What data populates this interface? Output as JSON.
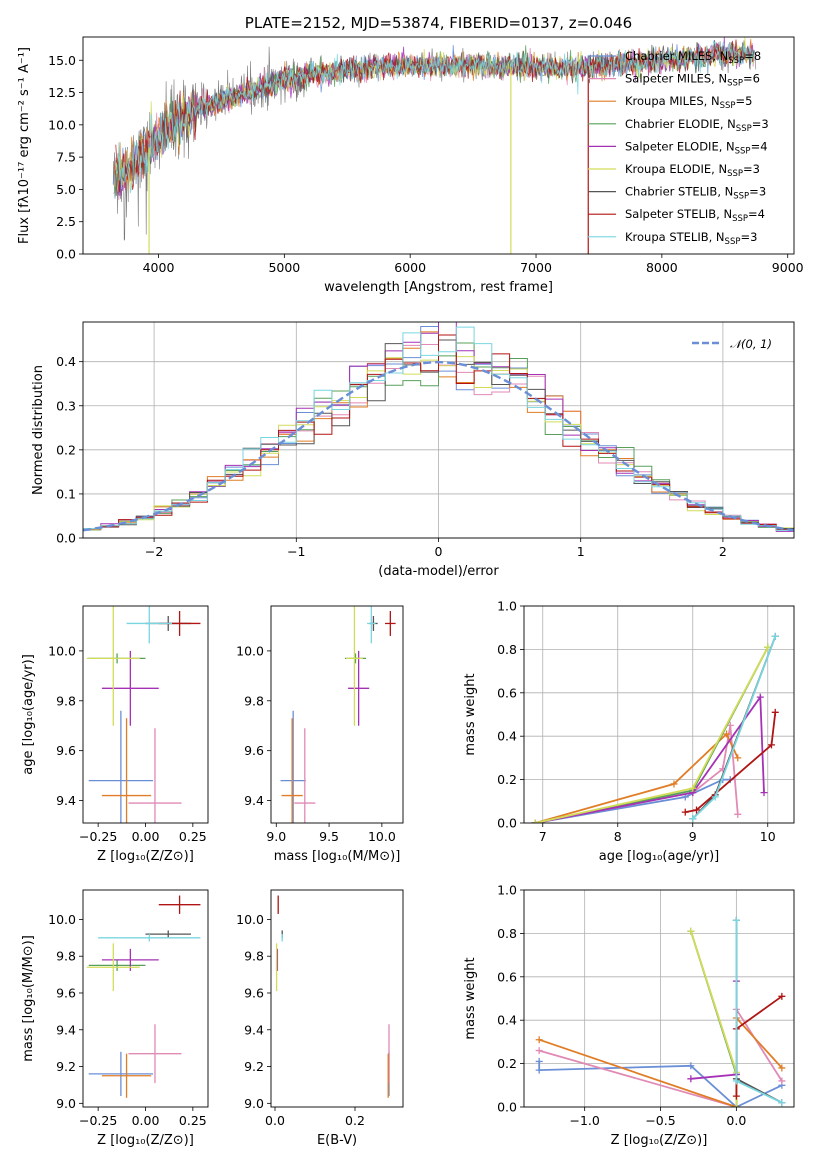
{
  "colors": {
    "Chabrier MILES": "#6a8fd6",
    "Salpeter MILES": "#e08ab5",
    "Kroupa MILES": "#e07d26",
    "Chabrier ELODIE": "#58a05a",
    "Salpeter ELODIE": "#a532b5",
    "Kroupa ELODIE": "#d2dc59",
    "Chabrier STELIB": "#555555",
    "Salpeter STELIB": "#b01414",
    "Kroupa STELIB": "#79d6e0",
    "normal": "#6a8fd6"
  },
  "chart_data": [
    {
      "id": "spectrum",
      "type": "line",
      "title": "PLATE=2152, MJD=53874, FIBERID=0137, z=0.046",
      "xlabel": "wavelength [Angstrom, rest frame]",
      "ylabel": "Flux [fλ10⁻¹⁷ erg cm⁻² s⁻¹ A⁻¹]",
      "xlim": [
        3400,
        9050
      ],
      "ylim": [
        0,
        16.8
      ],
      "xticks": [
        4000,
        5000,
        6000,
        7000,
        8000,
        9000
      ],
      "yticks": [
        0.0,
        2.5,
        5.0,
        7.5,
        10.0,
        12.5,
        15.0
      ],
      "grid": false,
      "legend_placement": "top-right",
      "legend": [
        {
          "name": "Chabrier MILES",
          "nssp": "8"
        },
        {
          "name": "Salpeter MILES",
          "nssp": "6"
        },
        {
          "name": "Kroupa MILES",
          "nssp": "5"
        },
        {
          "name": "Chabrier ELODIE",
          "nssp": "3"
        },
        {
          "name": "Salpeter ELODIE",
          "nssp": "4"
        },
        {
          "name": "Kroupa ELODIE",
          "nssp": "3"
        },
        {
          "name": "Chabrier STELIB",
          "nssp": "3"
        },
        {
          "name": "Salpeter STELIB",
          "nssp": "4"
        },
        {
          "name": "Kroupa STELIB",
          "nssp": "3"
        }
      ],
      "continuum": [
        [
          3640,
          5.8
        ],
        [
          3800,
          7.0
        ],
        [
          3950,
          8.5
        ],
        [
          4100,
          10.0
        ],
        [
          4300,
          11.2
        ],
        [
          4600,
          12.2
        ],
        [
          5000,
          13.5
        ],
        [
          5500,
          14.3
        ],
        [
          6000,
          14.6
        ],
        [
          6500,
          14.6
        ],
        [
          7000,
          14.4
        ],
        [
          7300,
          14.5
        ],
        [
          7600,
          14.6
        ],
        [
          8000,
          15.0
        ],
        [
          8500,
          15.5
        ],
        [
          8750,
          15.5
        ]
      ]
    },
    {
      "id": "residuals",
      "type": "histogram",
      "xlabel": "(data-model)/error",
      "ylabel": "Normed distribution",
      "xlim": [
        -2.5,
        2.5
      ],
      "ylim": [
        0,
        0.49
      ],
      "xticks": [
        -2,
        -1,
        0,
        1,
        2
      ],
      "yticks": [
        0.0,
        0.1,
        0.2,
        0.3,
        0.4
      ],
      "grid": true,
      "legend_placement": "top-right",
      "legend": [
        "𝒩(0, 1)"
      ],
      "bins": 40,
      "series_reference": "normal pdf, mean 0, sigma 1"
    },
    {
      "id": "age_vs_z",
      "type": "scatter",
      "xlabel": "Z [log₁₀(Z/Z⊙)]",
      "ylabel": "age  [log₁₀(age/yr)]",
      "xlim": [
        -0.33,
        0.33
      ],
      "ylim": [
        9.31,
        10.18
      ],
      "xticks": [
        -0.25,
        0.0,
        0.25
      ],
      "yticks": [
        9.4,
        9.6,
        9.8,
        10.0
      ],
      "grid": false,
      "points": [
        {
          "model": "Chabrier MILES",
          "x": -0.13,
          "y": 9.48,
          "xerr": 0.17,
          "yerr": 0.28
        },
        {
          "model": "Salpeter MILES",
          "x": 0.05,
          "y": 9.39,
          "xerr": 0.14,
          "yerr": 0.3
        },
        {
          "model": "Kroupa MILES",
          "x": -0.1,
          "y": 9.42,
          "xerr": 0.13,
          "yerr": 0.31
        },
        {
          "model": "Chabrier ELODIE",
          "x": -0.15,
          "y": 9.97,
          "xerr": 0.15,
          "yerr": 0.02
        },
        {
          "model": "Salpeter ELODIE",
          "x": -0.08,
          "y": 9.85,
          "xerr": 0.15,
          "yerr": 0.15
        },
        {
          "model": "Kroupa ELODIE",
          "x": -0.17,
          "y": 9.97,
          "xerr": 0.14,
          "yerr": 0.27
        },
        {
          "model": "Chabrier STELIB",
          "x": 0.12,
          "y": 10.11,
          "xerr": 0.12,
          "yerr": 0.03
        },
        {
          "model": "Salpeter STELIB",
          "x": 0.18,
          "y": 10.11,
          "xerr": 0.11,
          "yerr": 0.05
        },
        {
          "model": "Kroupa STELIB",
          "x": 0.02,
          "y": 10.11,
          "xerr": 0.12,
          "yerr": 0.08
        }
      ]
    },
    {
      "id": "age_vs_mass",
      "type": "scatter",
      "xlabel": "mass [log₁₀(M/M⊙)]",
      "ylabel": "",
      "xlim": [
        8.95,
        10.2
      ],
      "ylim": [
        9.31,
        10.18
      ],
      "xticks": [
        9.0,
        9.5,
        10.0
      ],
      "yticks": [
        9.4,
        9.6,
        9.8,
        10.0
      ],
      "grid": false,
      "points": [
        {
          "model": "Chabrier MILES",
          "x": 9.16,
          "y": 9.48,
          "xerr": 0.12,
          "yerr": 0.28
        },
        {
          "model": "Salpeter MILES",
          "x": 9.27,
          "y": 9.39,
          "xerr": 0.1,
          "yerr": 0.3
        },
        {
          "model": "Kroupa MILES",
          "x": 9.15,
          "y": 9.42,
          "xerr": 0.1,
          "yerr": 0.31
        },
        {
          "model": "Chabrier ELODIE",
          "x": 9.75,
          "y": 9.97,
          "xerr": 0.1,
          "yerr": 0.02
        },
        {
          "model": "Salpeter ELODIE",
          "x": 9.78,
          "y": 9.85,
          "xerr": 0.1,
          "yerr": 0.15
        },
        {
          "model": "Kroupa ELODIE",
          "x": 9.74,
          "y": 9.97,
          "xerr": 0.08,
          "yerr": 0.27
        },
        {
          "model": "Chabrier STELIB",
          "x": 9.92,
          "y": 10.11,
          "xerr": 0.04,
          "yerr": 0.03
        },
        {
          "model": "Salpeter STELIB",
          "x": 10.08,
          "y": 10.11,
          "xerr": 0.05,
          "yerr": 0.05
        },
        {
          "model": "Kroupa STELIB",
          "x": 9.9,
          "y": 10.11,
          "xerr": 0.04,
          "yerr": 0.08
        }
      ]
    },
    {
      "id": "weight_vs_age",
      "type": "line",
      "xlabel": "age  [log₁₀(age/yr)]",
      "ylabel": "mass weight",
      "xlim": [
        6.75,
        10.35
      ],
      "ylim": [
        0,
        1.0
      ],
      "xticks": [
        7,
        8,
        9,
        10
      ],
      "yticks": [
        0.0,
        0.2,
        0.4,
        0.6,
        0.8,
        1.0
      ],
      "grid": true,
      "series": [
        {
          "model": "Chabrier MILES",
          "points": [
            [
              6.9,
              0.0
            ],
            [
              8.9,
              0.12
            ],
            [
              9.4,
              0.2
            ],
            [
              9.5,
              0.2
            ]
          ]
        },
        {
          "model": "Salpeter MILES",
          "points": [
            [
              6.9,
              0.0
            ],
            [
              9.0,
              0.14
            ],
            [
              9.4,
              0.25
            ],
            [
              9.5,
              0.45
            ],
            [
              9.6,
              0.04
            ]
          ]
        },
        {
          "model": "Kroupa MILES",
          "points": [
            [
              6.9,
              0.0
            ],
            [
              8.75,
              0.18
            ],
            [
              9.45,
              0.41
            ],
            [
              9.6,
              0.3
            ]
          ]
        },
        {
          "model": "Chabrier ELODIE",
          "points": [
            [
              6.9,
              0.0
            ],
            [
              9.0,
              0.15
            ],
            [
              10.0,
              0.81
            ]
          ]
        },
        {
          "model": "Salpeter ELODIE",
          "points": [
            [
              6.9,
              0.0
            ],
            [
              9.0,
              0.14
            ],
            [
              9.9,
              0.58
            ],
            [
              9.95,
              0.14
            ]
          ]
        },
        {
          "model": "Kroupa ELODIE",
          "points": [
            [
              6.9,
              0.0
            ],
            [
              9.0,
              0.16
            ],
            [
              10.0,
              0.81
            ]
          ]
        },
        {
          "model": "Chabrier STELIB",
          "points": [
            [
              9.0,
              0.02
            ],
            [
              9.3,
              0.13
            ],
            [
              10.1,
              0.86
            ]
          ]
        },
        {
          "model": "Salpeter STELIB",
          "points": [
            [
              8.9,
              0.05
            ],
            [
              9.05,
              0.06
            ],
            [
              10.05,
              0.36
            ],
            [
              10.1,
              0.51
            ]
          ]
        },
        {
          "model": "Kroupa STELIB",
          "points": [
            [
              9.0,
              0.02
            ],
            [
              9.3,
              0.12
            ],
            [
              10.1,
              0.86
            ]
          ]
        }
      ]
    },
    {
      "id": "mass_vs_z",
      "type": "scatter",
      "xlabel": "Z [log₁₀(Z/Z⊙)]",
      "ylabel": "mass [log₁₀(M/M⊙)]",
      "xlim": [
        -0.33,
        0.33
      ],
      "ylim": [
        8.98,
        10.16
      ],
      "xticks": [
        -0.25,
        0.0,
        0.25
      ],
      "yticks": [
        9.0,
        9.2,
        9.4,
        9.6,
        9.8,
        10.0
      ],
      "grid": false,
      "points": [
        {
          "model": "Chabrier MILES",
          "x": -0.13,
          "y": 9.16,
          "xerr": 0.17,
          "yerr": 0.12
        },
        {
          "model": "Salpeter MILES",
          "x": 0.05,
          "y": 9.27,
          "xerr": 0.14,
          "yerr": 0.16
        },
        {
          "model": "Kroupa MILES",
          "x": -0.1,
          "y": 9.15,
          "xerr": 0.13,
          "yerr": 0.12
        },
        {
          "model": "Chabrier ELODIE",
          "x": -0.15,
          "y": 9.75,
          "xerr": 0.15,
          "yerr": 0.03
        },
        {
          "model": "Salpeter ELODIE",
          "x": -0.08,
          "y": 9.78,
          "xerr": 0.15,
          "yerr": 0.06
        },
        {
          "model": "Kroupa ELODIE",
          "x": -0.17,
          "y": 9.74,
          "xerr": 0.14,
          "yerr": 0.13
        },
        {
          "model": "Chabrier STELIB",
          "x": 0.12,
          "y": 9.92,
          "xerr": 0.12,
          "yerr": 0.02
        },
        {
          "model": "Salpeter STELIB",
          "x": 0.18,
          "y": 10.08,
          "xerr": 0.11,
          "yerr": 0.05
        },
        {
          "model": "Kroupa STELIB",
          "x": 0.02,
          "y": 9.9,
          "xerr": 0.27,
          "yerr": 0.02
        }
      ]
    },
    {
      "id": "mass_vs_ebv",
      "type": "scatter",
      "xlabel": "E(B-V)",
      "ylabel": "",
      "xlim": [
        -0.01,
        0.32
      ],
      "ylim": [
        8.98,
        10.16
      ],
      "xticks": [
        0.0,
        0.2
      ],
      "yticks": [
        9.0,
        9.2,
        9.4,
        9.6,
        9.8,
        10.0
      ],
      "grid": false,
      "points": [
        {
          "model": "Chabrier MILES",
          "x": 0.285,
          "y": 9.16,
          "xerr": 0.0,
          "yerr": 0.12
        },
        {
          "model": "Salpeter MILES",
          "x": 0.285,
          "y": 9.27,
          "xerr": 0.0,
          "yerr": 0.16
        },
        {
          "model": "Kroupa MILES",
          "x": 0.283,
          "y": 9.15,
          "xerr": 0.0,
          "yerr": 0.12
        },
        {
          "model": "Chabrier ELODIE",
          "x": 0.004,
          "y": 9.75,
          "xerr": 0.0,
          "yerr": 0.03
        },
        {
          "model": "Salpeter ELODIE",
          "x": 0.006,
          "y": 9.78,
          "xerr": 0.0,
          "yerr": 0.06
        },
        {
          "model": "Kroupa ELODIE",
          "x": 0.004,
          "y": 9.74,
          "xerr": 0.0,
          "yerr": 0.13
        },
        {
          "model": "Chabrier STELIB",
          "x": 0.018,
          "y": 9.92,
          "xerr": 0.0,
          "yerr": 0.02
        },
        {
          "model": "Salpeter STELIB",
          "x": 0.008,
          "y": 10.08,
          "xerr": 0.0,
          "yerr": 0.05
        },
        {
          "model": "Kroupa STELIB",
          "x": 0.018,
          "y": 9.9,
          "xerr": 0.0,
          "yerr": 0.02
        }
      ]
    },
    {
      "id": "weight_vs_z",
      "type": "line",
      "xlabel": "Z [log₁₀(Z/Z⊙)]",
      "ylabel": "mass weight",
      "xlim": [
        -1.4,
        0.38
      ],
      "ylim": [
        0,
        1.0
      ],
      "xticks": [
        -1.0,
        -0.5,
        0.0
      ],
      "yticks": [
        0.0,
        0.2,
        0.4,
        0.6,
        0.8,
        1.0
      ],
      "grid": true,
      "series": [
        {
          "model": "Chabrier MILES",
          "points": [
            [
              -1.3,
              0.21
            ],
            [
              -1.3,
              0.17
            ],
            [
              -0.3,
              0.19
            ],
            [
              0.0,
              0.0
            ],
            [
              0.3,
              0.1
            ]
          ]
        },
        {
          "model": "Salpeter MILES",
          "points": [
            [
              -1.3,
              0.26
            ],
            [
              0.0,
              0.0
            ],
            [
              0.0,
              0.45
            ],
            [
              0.3,
              0.12
            ]
          ]
        },
        {
          "model": "Kroupa MILES",
          "points": [
            [
              -1.3,
              0.31
            ],
            [
              0.0,
              0.0
            ],
            [
              0.0,
              0.41
            ],
            [
              0.3,
              0.18
            ]
          ]
        },
        {
          "model": "Chabrier ELODIE",
          "points": [
            [
              -0.3,
              0.81
            ],
            [
              0.0,
              0.15
            ],
            [
              0.0,
              0.0
            ]
          ]
        },
        {
          "model": "Salpeter ELODIE",
          "points": [
            [
              -0.3,
              0.13
            ],
            [
              0.0,
              0.15
            ],
            [
              0.0,
              0.58
            ]
          ]
        },
        {
          "model": "Kroupa ELODIE",
          "points": [
            [
              -0.3,
              0.81
            ],
            [
              0.0,
              0.16
            ],
            [
              0.0,
              0.0
            ]
          ]
        },
        {
          "model": "Chabrier STELIB",
          "points": [
            [
              0.0,
              0.86
            ],
            [
              0.0,
              0.13
            ],
            [
              0.3,
              0.02
            ]
          ]
        },
        {
          "model": "Salpeter STELIB",
          "points": [
            [
              0.0,
              0.05
            ],
            [
              0.0,
              0.36
            ],
            [
              0.3,
              0.51
            ]
          ]
        },
        {
          "model": "Kroupa STELIB",
          "points": [
            [
              0.0,
              0.86
            ],
            [
              0.0,
              0.12
            ],
            [
              0.3,
              0.02
            ]
          ]
        }
      ]
    }
  ]
}
